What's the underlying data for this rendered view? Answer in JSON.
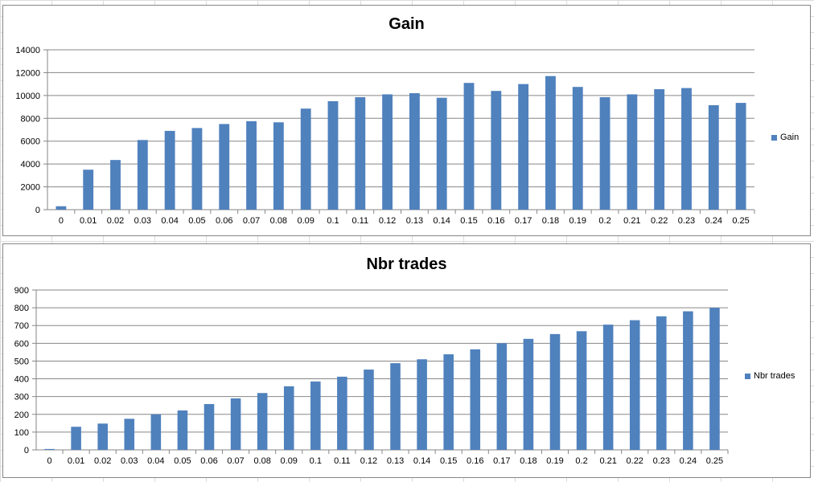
{
  "chart_data": [
    {
      "type": "bar",
      "title": "Gain",
      "categories": [
        "0",
        "0.01",
        "0.02",
        "0.03",
        "0.04",
        "0.05",
        "0.06",
        "0.07",
        "0.08",
        "0.09",
        "0.1",
        "0.11",
        "0.12",
        "0.13",
        "0.14",
        "0.15",
        "0.16",
        "0.17",
        "0.18",
        "0.19",
        "0.2",
        "0.21",
        "0.22",
        "0.23",
        "0.24",
        "0.25"
      ],
      "series": [
        {
          "name": "Gain",
          "color": "#4f81bd",
          "values": [
            300,
            3500,
            4350,
            6100,
            6900,
            7150,
            7500,
            7750,
            7650,
            8850,
            9500,
            9850,
            10100,
            10200,
            9800,
            11100,
            10400,
            11000,
            11700,
            10750,
            9850,
            10100,
            10550,
            10650,
            9150,
            9350
          ]
        }
      ],
      "yticks": [
        "0",
        "2000",
        "4000",
        "6000",
        "8000",
        "10000",
        "12000",
        "14000"
      ],
      "ylim": [
        0,
        14000
      ],
      "grid": true,
      "legend_position": "right"
    },
    {
      "type": "bar",
      "title": "Nbr trades",
      "categories": [
        "0",
        "0.01",
        "0.02",
        "0.03",
        "0.04",
        "0.05",
        "0.06",
        "0.07",
        "0.08",
        "0.09",
        "0.1",
        "0.11",
        "0.12",
        "0.13",
        "0.14",
        "0.15",
        "0.16",
        "0.17",
        "0.18",
        "0.19",
        "0.2",
        "0.21",
        "0.22",
        "0.23",
        "0.24",
        "0.25"
      ],
      "series": [
        {
          "name": "Nbr trades",
          "color": "#4f81bd",
          "values": [
            5,
            130,
            148,
            175,
            200,
            222,
            258,
            290,
            320,
            358,
            385,
            412,
            452,
            488,
            510,
            538,
            566,
            600,
            625,
            652,
            668,
            705,
            730,
            752,
            780,
            800
          ]
        }
      ],
      "yticks": [
        "0",
        "100",
        "200",
        "300",
        "400",
        "500",
        "600",
        "700",
        "800",
        "900"
      ],
      "ylim": [
        0,
        900
      ],
      "grid": true,
      "legend_position": "right"
    }
  ]
}
